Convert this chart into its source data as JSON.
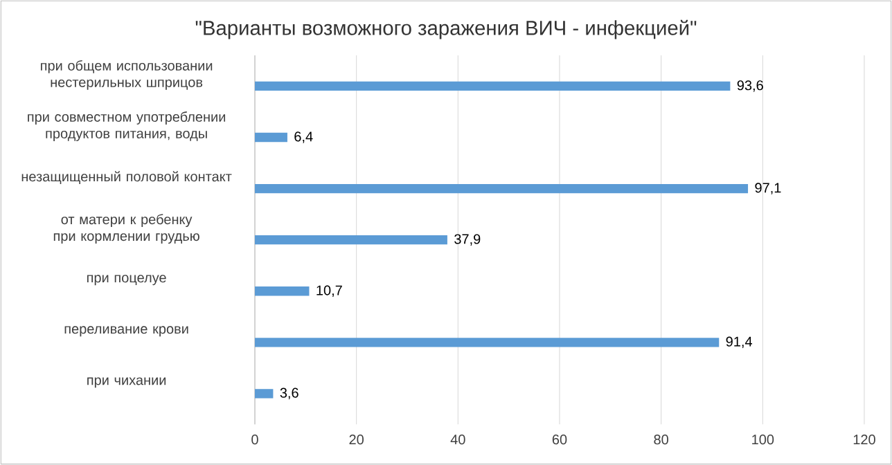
{
  "chart_data": {
    "type": "bar",
    "orientation": "horizontal",
    "title": "\"Варианты возможного заражения ВИЧ - инфекцией\"",
    "categories": [
      "при общем использовании нестерильных шприцов",
      "при совместном употреблении продуктов питания, воды",
      "незащищенный половой контакт",
      "от матери к ребенку при кормлении грудью",
      "при поцелуе",
      "переливание крови",
      "при чихании"
    ],
    "values": [
      93.6,
      6.4,
      97.1,
      37.9,
      10.7,
      91.4,
      3.6
    ],
    "value_labels": [
      "93,6",
      "6,4",
      "97,1",
      "37,9",
      "10,7",
      "91,4",
      "3,6"
    ],
    "color": "#5b9bd5",
    "xlim": [
      0,
      120
    ],
    "xticks": [
      0,
      20,
      40,
      60,
      80,
      100,
      120
    ],
    "grid": "x"
  }
}
